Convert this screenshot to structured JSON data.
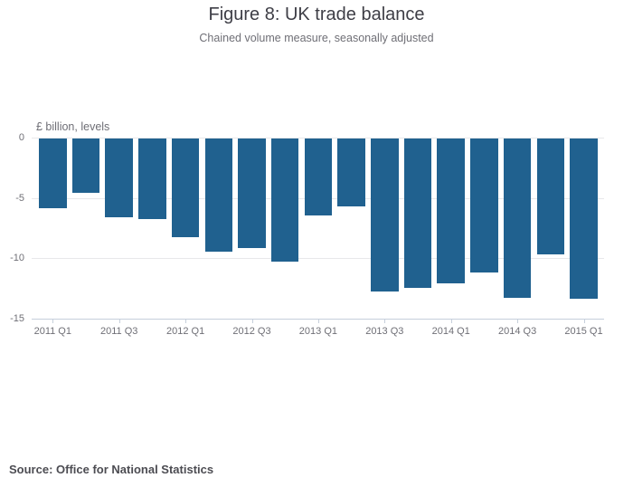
{
  "chart_data": {
    "type": "bar",
    "title": "Figure 8: UK trade balance",
    "subtitle": "Chained volume measure, seasonally adjusted",
    "unit_label": "£ billion, levels",
    "categories": [
      "2011 Q1",
      "2011 Q2",
      "2011 Q3",
      "2011 Q4",
      "2012 Q1",
      "2012 Q2",
      "2012 Q3",
      "2012 Q4",
      "2013 Q1",
      "2013 Q2",
      "2013 Q3",
      "2013 Q4",
      "2014 Q1",
      "2014 Q2",
      "2014 Q3",
      "2014 Q4",
      "2015 Q1"
    ],
    "values": [
      -5.8,
      -4.5,
      -6.5,
      -6.7,
      -8.2,
      -9.4,
      -9.1,
      -10.2,
      -6.4,
      -5.6,
      -12.7,
      -12.4,
      -12.0,
      -11.1,
      -13.2,
      -9.6,
      -13.3
    ],
    "x_tick_labels": [
      "2011 Q1",
      "2011 Q3",
      "2012 Q1",
      "2012 Q3",
      "2013 Q1",
      "2013 Q3",
      "2014 Q1",
      "2014 Q3",
      "2015 Q1"
    ],
    "y_ticks": [
      0,
      -5,
      -10,
      -15
    ],
    "ylim": [
      -15,
      0
    ],
    "xlabel": "",
    "ylabel": "£ billion, levels",
    "grid": "horizontal",
    "legend": "none",
    "bar_color": "#20618f",
    "source": "Source: Office for National Statistics"
  }
}
